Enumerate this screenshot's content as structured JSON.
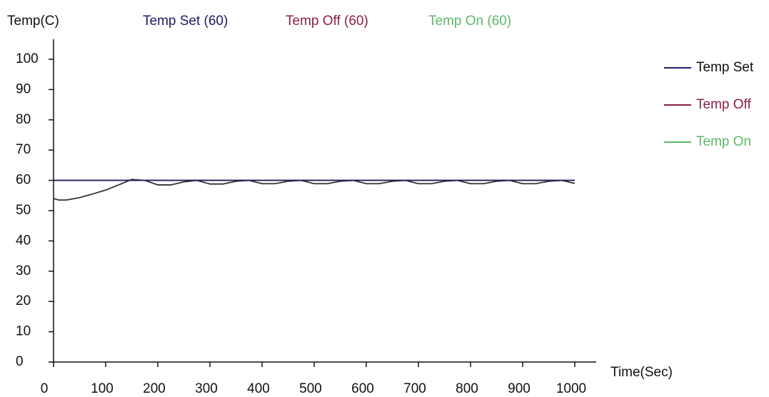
{
  "chart_data": {
    "type": "line",
    "y_label": "Temp(C)",
    "x_label": "Time(Sec)",
    "xlim": [
      0,
      1000
    ],
    "xticks": [
      0,
      100,
      200,
      300,
      400,
      500,
      600,
      700,
      800,
      900,
      1000
    ],
    "ylim": [
      0,
      105
    ],
    "yticks": [
      0,
      10,
      20,
      30,
      40,
      50,
      60,
      70,
      80,
      90,
      100
    ],
    "series": [
      {
        "name": "Temp Set",
        "label": "Temp Set  (60)",
        "color": "#1c1c66",
        "x": [
          0,
          1000
        ],
        "values": [
          60,
          60
        ]
      },
      {
        "name": "Temp Off",
        "label": "Temp Off  (60)",
        "color": "#8a1f45",
        "x": [
          0,
          1000
        ],
        "values": [
          60,
          60
        ]
      },
      {
        "name": "Temp On",
        "label": "Temp On   (60)",
        "color": "#5cb86a",
        "x": [
          0,
          1000
        ],
        "values": [
          60,
          60
        ]
      },
      {
        "color": "#333333",
        "x": [
          0,
          10,
          25,
          50,
          75,
          100,
          125,
          150,
          175,
          200,
          225,
          250,
          275,
          300,
          325,
          350,
          375,
          400,
          425,
          450,
          475,
          500,
          525,
          550,
          575,
          600,
          625,
          650,
          675,
          700,
          725,
          750,
          775,
          800,
          825,
          850,
          875,
          900,
          925,
          950,
          975,
          1000
        ],
        "values": [
          54,
          53.5,
          53.5,
          54.3,
          55.5,
          56.8,
          58.5,
          60.3,
          60,
          58.5,
          58.5,
          59.5,
          60,
          58.8,
          58.8,
          59.7,
          60,
          58.9,
          58.9,
          59.7,
          60,
          58.9,
          58.9,
          59.7,
          60,
          58.9,
          58.9,
          59.7,
          60,
          58.9,
          58.9,
          59.7,
          60,
          58.9,
          58.9,
          59.7,
          60,
          58.9,
          58.9,
          59.7,
          60,
          59
        ]
      }
    ]
  }
}
